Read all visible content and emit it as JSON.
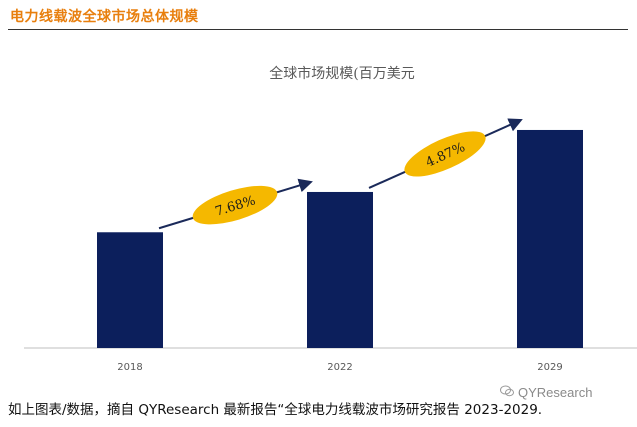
{
  "header": {
    "title": "电力线载波全球市场总体规模"
  },
  "chart_data": {
    "type": "bar",
    "title": "全球市场规模(百万美元",
    "categories": [
      "2018",
      "2022",
      "2029"
    ],
    "values": [
      112,
      151,
      211
    ],
    "ylim": [
      0,
      240
    ],
    "grid": false,
    "legend": "none",
    "bar_color": "#0c1f5c",
    "annotations": [
      {
        "text": "7.68%",
        "from": "2018",
        "to": "2022"
      },
      {
        "text": "4.87%",
        "from": "2022",
        "to": "2029"
      }
    ],
    "annotation_color": "#f5b800"
  },
  "footnote": "如上图表/数据，摘自 QYResearch 最新报告“全球电力线载波市场研究报告 2023-2029.",
  "watermark": "QYResearch"
}
